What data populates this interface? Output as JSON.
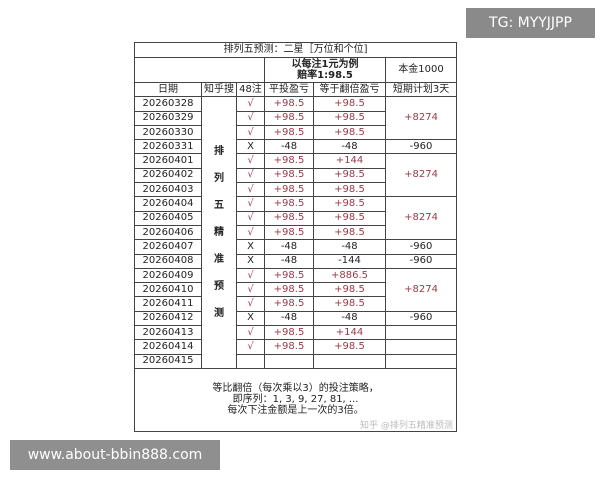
{
  "badge": "TG: MYYJJPP",
  "watermark": "www.about-bbin888.com",
  "zhihu_mark": "知乎 @排列五精准预测",
  "table": {
    "title": "排列五预测：二星［万位和个位]",
    "example_line1": "以每注1元为例",
    "example_line2": "赔率1:98.5",
    "capital": "本金1000",
    "headers": [
      "日期",
      "知乎搜",
      "48注",
      "平投盈亏",
      "等于翻倍盈亏",
      "短期计划3天"
    ],
    "vertical_label": [
      "排",
      "列",
      "五",
      "精",
      "准",
      "预",
      "测"
    ],
    "rows": [
      {
        "date": "20260328",
        "hit": "√",
        "flat": "+98.5",
        "double": "+98.5"
      },
      {
        "date": "20260329",
        "hit": "√",
        "flat": "+98.5",
        "double": "+98.5"
      },
      {
        "date": "20260330",
        "hit": "√",
        "flat": "+98.5",
        "double": "+98.5"
      },
      {
        "date": "20260331",
        "hit": "X",
        "flat": "-48",
        "double": "-48"
      },
      {
        "date": "20260401",
        "hit": "√",
        "flat": "+98.5",
        "double": "+144"
      },
      {
        "date": "20260402",
        "hit": "√",
        "flat": "+98.5",
        "double": "+98.5"
      },
      {
        "date": "20260403",
        "hit": "√",
        "flat": "+98.5",
        "double": "+98.5"
      },
      {
        "date": "20260404",
        "hit": "√",
        "flat": "+98.5",
        "double": "+98.5"
      },
      {
        "date": "20260405",
        "hit": "√",
        "flat": "+98.5",
        "double": "+98.5"
      },
      {
        "date": "20260406",
        "hit": "√",
        "flat": "+98.5",
        "double": "+98.5"
      },
      {
        "date": "20260407",
        "hit": "X",
        "flat": "-48",
        "double": "-48"
      },
      {
        "date": "20260408",
        "hit": "X",
        "flat": "-48",
        "double": "-144"
      },
      {
        "date": "20260409",
        "hit": "√",
        "flat": "+98.5",
        "double": "+886.5"
      },
      {
        "date": "20260410",
        "hit": "√",
        "flat": "+98.5",
        "double": "+98.5"
      },
      {
        "date": "20260411",
        "hit": "√",
        "flat": "+98.5",
        "double": "+98.5"
      },
      {
        "date": "20260412",
        "hit": "X",
        "flat": "-48",
        "double": "-48"
      },
      {
        "date": "20260413",
        "hit": "√",
        "flat": "+98.5",
        "double": "+144"
      },
      {
        "date": "20260414",
        "hit": "√",
        "flat": "+98.5",
        "double": "+98.5"
      },
      {
        "date": "20260415",
        "hit": "",
        "flat": "",
        "double": ""
      }
    ],
    "plan": [
      {
        "span": 3,
        "value": "+8274"
      },
      {
        "span": 1,
        "value": "-960"
      },
      {
        "span": 3,
        "value": "+8274"
      },
      {
        "span": 3,
        "value": "+8274"
      },
      {
        "span": 1,
        "value": "-960"
      },
      {
        "span": 1,
        "value": "-960"
      },
      {
        "span": 3,
        "value": "+8274"
      },
      {
        "span": 1,
        "value": "-960"
      },
      {
        "span": 1,
        "value": ""
      },
      {
        "span": 1,
        "value": ""
      },
      {
        "span": 1,
        "value": ""
      }
    ],
    "footer": [
      "等比翻倍（每次乘以3）的投注策略，",
      "即序列：1, 3, 9, 27, 81, ...",
      "每次下注金额是上一次的3倍。"
    ]
  }
}
